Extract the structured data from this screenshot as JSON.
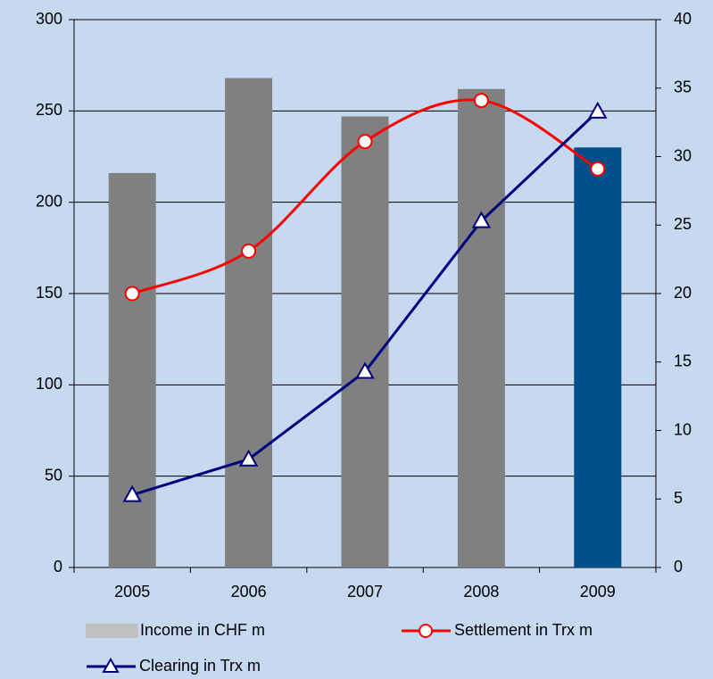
{
  "chart_data": {
    "type": "bar-line",
    "categories": [
      "2005",
      "2006",
      "2007",
      "2008",
      "2009"
    ],
    "series": [
      {
        "name": "Income in CHF m",
        "type": "bar",
        "color": "#c0c0c0",
        "colors": [
          "#808080",
          "#808080",
          "#808080",
          "#808080",
          "#004f8b"
        ],
        "values": [
          216,
          268,
          247,
          262,
          230
        ]
      },
      {
        "name": "Settlement in Trx m",
        "type": "line",
        "smooth": true,
        "marker": "circle",
        "color": "#ff0000",
        "axis": "y2",
        "values": [
          20.0,
          23.1,
          31.1,
          34.1,
          29.1
        ]
      },
      {
        "name": "Clearing in Trx m",
        "type": "line",
        "smooth": false,
        "marker": "triangle",
        "color": "#000080",
        "axis": "y2",
        "values": [
          5.3,
          7.9,
          14.3,
          25.3,
          33.3
        ]
      }
    ],
    "ylim": [
      0,
      300
    ],
    "yticks": [
      0,
      50,
      100,
      150,
      200,
      250,
      300
    ],
    "y2lim": [
      0,
      40
    ],
    "y2ticks": [
      0,
      5,
      10,
      15,
      20,
      25,
      30,
      35,
      40
    ],
    "grid": true,
    "legend": "bottom"
  }
}
